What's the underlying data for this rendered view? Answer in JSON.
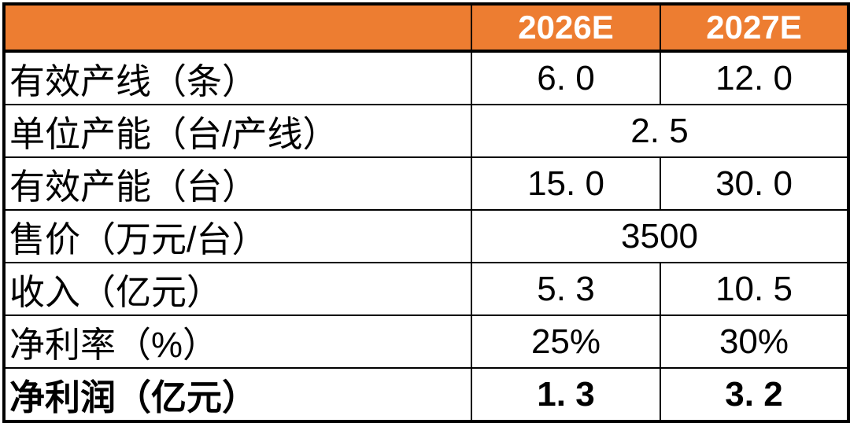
{
  "colors": {
    "header_bg": "#ED7D31",
    "header_text": "#FFFFFF",
    "border": "#000000",
    "body_bg": "#FFFFFF",
    "body_text": "#000000"
  },
  "chart_data": {
    "type": "table",
    "columns": [
      "",
      "2026E",
      "2027E"
    ],
    "rows": [
      {
        "label": "有效产线（条）",
        "merged": false,
        "bold": false,
        "display": [
          "6. 0",
          "12. 0"
        ],
        "values": [
          6.0,
          12.0
        ]
      },
      {
        "label": "单位产能（台/产线）",
        "merged": true,
        "bold": false,
        "display": [
          "2. 5"
        ],
        "values": [
          2.5,
          2.5
        ]
      },
      {
        "label": "有效产能（台）",
        "merged": false,
        "bold": false,
        "display": [
          "15. 0",
          "30. 0"
        ],
        "values": [
          15.0,
          30.0
        ]
      },
      {
        "label": "售价（万元/台）",
        "merged": true,
        "bold": false,
        "display": [
          "3500"
        ],
        "values": [
          3500,
          3500
        ]
      },
      {
        "label": "收入（亿元）",
        "merged": false,
        "bold": false,
        "display": [
          "5. 3",
          "10. 5"
        ],
        "values": [
          5.3,
          10.5
        ]
      },
      {
        "label": "净利率（%）",
        "merged": false,
        "bold": false,
        "display": [
          "25%",
          "30%"
        ],
        "values": [
          25,
          30
        ]
      },
      {
        "label": "净利润（亿元）",
        "merged": false,
        "bold": true,
        "display": [
          "1. 3",
          "3. 2"
        ],
        "values": [
          1.3,
          3.2
        ]
      }
    ]
  }
}
